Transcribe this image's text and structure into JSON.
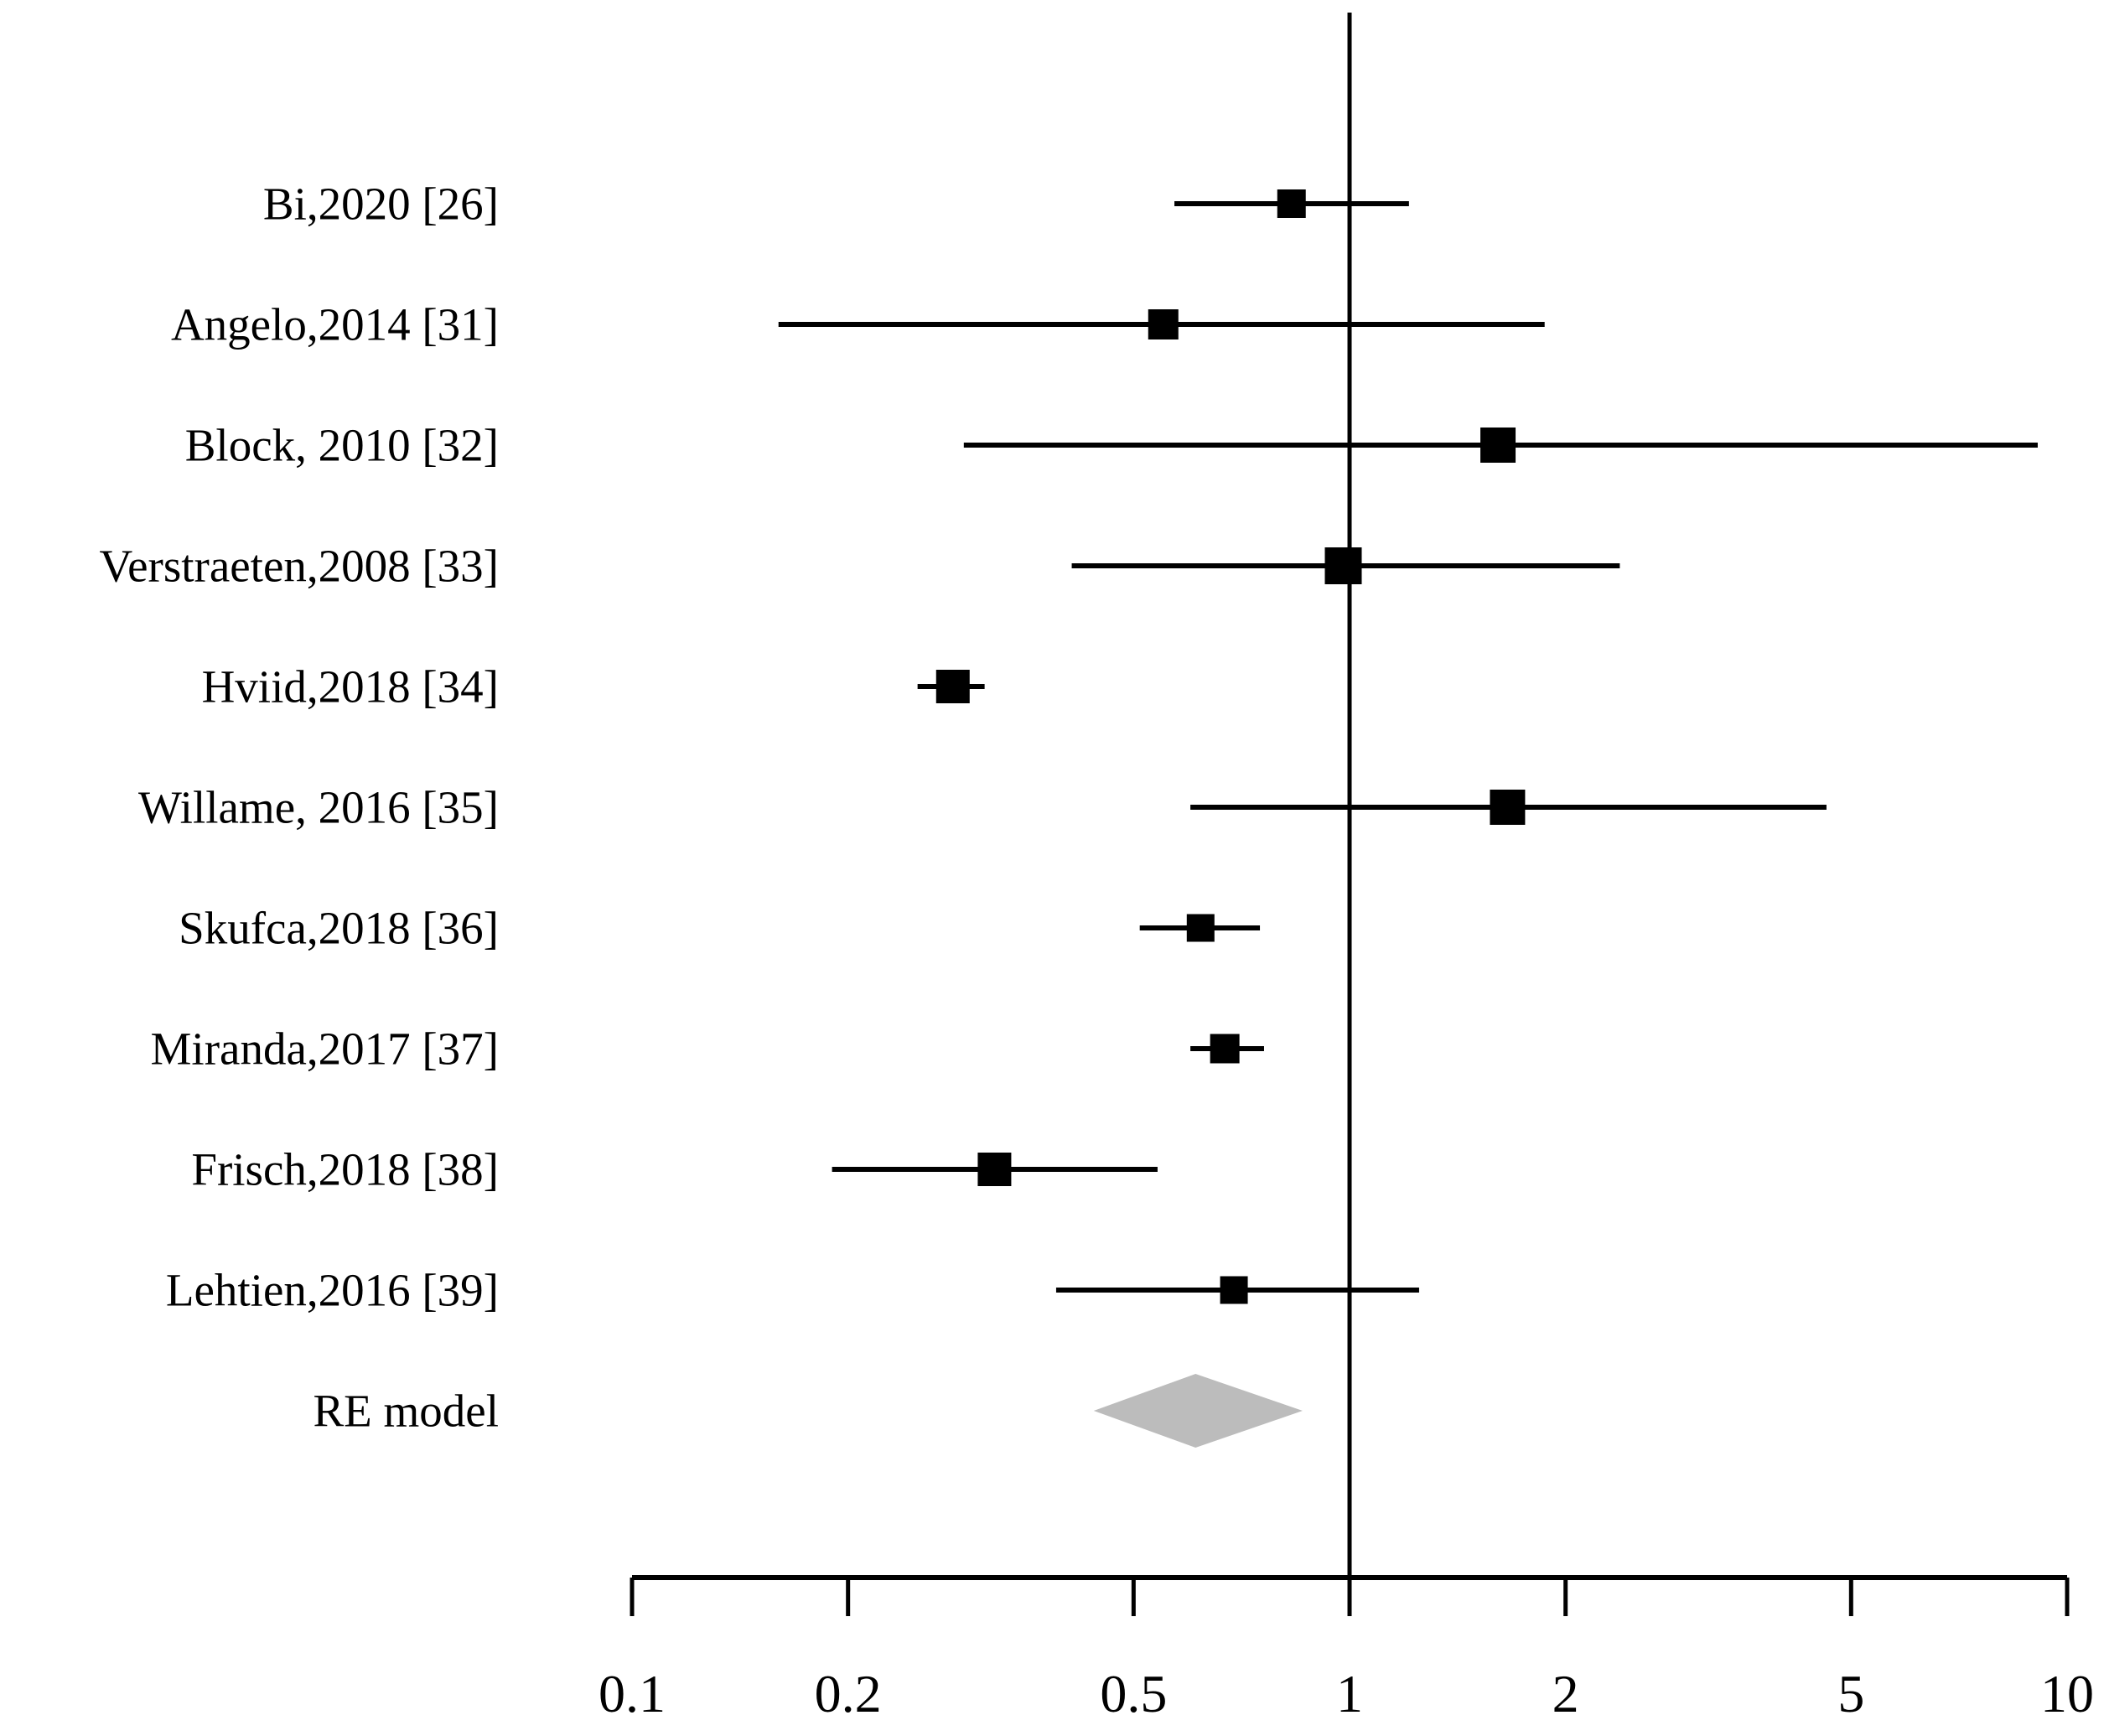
{
  "figure": {
    "background_color": "#ffffff",
    "ink_color": "#000000",
    "diamond_color": "#bcbcbc"
  },
  "chart_data": {
    "type": "forest",
    "title": "",
    "x_scale": "log10",
    "xlim": [
      0.1,
      10
    ],
    "x_ticks": [
      0.1,
      0.2,
      0.5,
      1,
      2,
      5,
      10
    ],
    "x_tick_labels": [
      "0.1",
      "0.2",
      "0.5",
      "1",
      "2",
      "5",
      "10"
    ],
    "reference_value": 1,
    "grid": false,
    "legend": false,
    "studies": [
      {
        "label": "Bi,2020 [26]",
        "estimate": 0.83,
        "ci_low": 0.57,
        "ci_high": 1.21,
        "marker_size": 34
      },
      {
        "label": "Angelo,2014 [31]",
        "estimate": 0.55,
        "ci_low": 0.16,
        "ci_high": 1.87,
        "marker_size": 36
      },
      {
        "label": "Block, 2010 [32]",
        "estimate": 1.61,
        "ci_low": 0.29,
        "ci_high": 9.1,
        "marker_size": 42
      },
      {
        "label": "Verstraeten,2008 [33]",
        "estimate": 0.98,
        "ci_low": 0.41,
        "ci_high": 2.38,
        "marker_size": 44
      },
      {
        "label": "Hviid,2018 [34]",
        "estimate": 0.28,
        "ci_low": 0.25,
        "ci_high": 0.31,
        "marker_size": 40
      },
      {
        "label": "Willame, 2016 [35]",
        "estimate": 1.66,
        "ci_low": 0.6,
        "ci_high": 4.62,
        "marker_size": 42
      },
      {
        "label": "Skufca,2018 [36]",
        "estimate": 0.62,
        "ci_low": 0.51,
        "ci_high": 0.75,
        "marker_size": 33
      },
      {
        "label": "Miranda,2017 [37]",
        "estimate": 0.67,
        "ci_low": 0.6,
        "ci_high": 0.76,
        "marker_size": 35
      },
      {
        "label": "Frisch,2018 [38]",
        "estimate": 0.32,
        "ci_low": 0.19,
        "ci_high": 0.54,
        "marker_size": 40
      },
      {
        "label": "Lehtien,2016 [39]",
        "estimate": 0.69,
        "ci_low": 0.39,
        "ci_high": 1.25,
        "marker_size": 33
      }
    ],
    "summary": {
      "label": "RE model",
      "estimate": 0.61,
      "ci_low": 0.44,
      "ci_high": 0.86
    }
  }
}
